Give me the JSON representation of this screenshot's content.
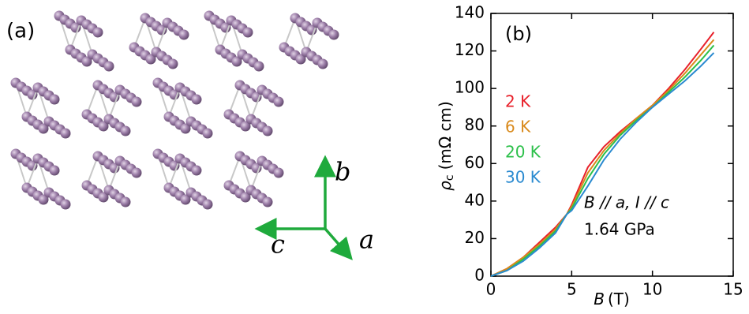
{
  "panel_a": {
    "label": "(a)",
    "axis_b": "b",
    "axis_c": "c",
    "axis_a": "a"
  },
  "chart_data": {
    "type": "line",
    "panel_label": "(b)",
    "xlabel": {
      "symbol": "B",
      "unit": "(T)"
    },
    "ylabel": {
      "symbol": "ρ",
      "subscript": "c",
      "unit": "(mΩ cm)"
    },
    "annotations": [
      "B // a, I // c",
      "1.64 GPa"
    ],
    "x": [
      0,
      1,
      2,
      3,
      4,
      4.7,
      5,
      6,
      7,
      8,
      9,
      10,
      11,
      12,
      13,
      13.8
    ],
    "series": [
      {
        "name": "2 K",
        "color": "#e8202a",
        "values": [
          0,
          4,
          10,
          18,
          26,
          33,
          38,
          58,
          69,
          77,
          84,
          91,
          100,
          110,
          121,
          130
        ]
      },
      {
        "name": "6 K",
        "color": "#d98a1c",
        "values": [
          0,
          4,
          10,
          17,
          25,
          33,
          37,
          55,
          67,
          76,
          84,
          91,
          99,
          108,
          118,
          126
        ]
      },
      {
        "name": "20 K",
        "color": "#2cc04a",
        "values": [
          0,
          3,
          9,
          16,
          24,
          33,
          36,
          52,
          65,
          75,
          83,
          90,
          98,
          106,
          115,
          123
        ]
      },
      {
        "name": "30 K",
        "color": "#2a8ad0",
        "values": [
          0,
          3,
          8,
          15,
          23,
          33,
          35,
          48,
          62,
          73,
          82,
          90,
          97,
          104,
          112,
          119
        ]
      }
    ],
    "xlim": [
      0,
      15
    ],
    "xticks": [
      0,
      5,
      10,
      15
    ],
    "ylim": [
      0,
      140
    ],
    "yticks": [
      0,
      20,
      40,
      60,
      80,
      100,
      120,
      140
    ]
  }
}
